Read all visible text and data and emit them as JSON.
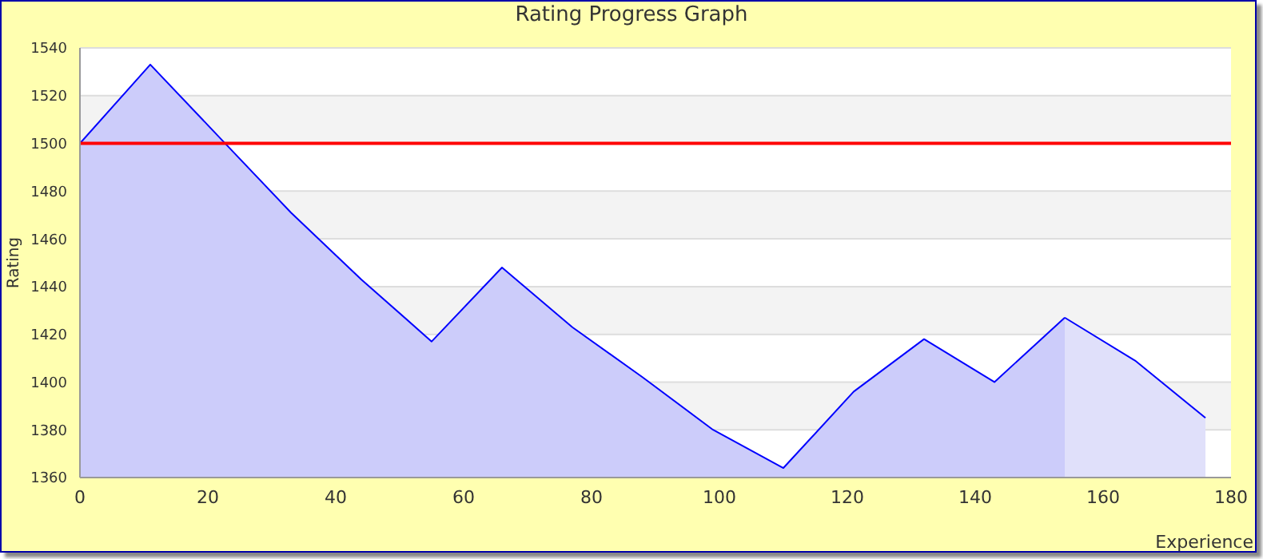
{
  "chart_data": {
    "type": "area",
    "title": "Rating Progress Graph",
    "xlabel": "Experience",
    "ylabel": "Rating",
    "series": [
      {
        "color": "#ccccfa",
        "x": [
          0,
          11,
          22,
          33,
          44,
          55,
          66,
          77,
          88,
          99,
          110,
          121,
          132,
          143,
          154
        ],
        "values": [
          1500,
          1533,
          1502,
          1471,
          1443,
          1417,
          1448,
          1423,
          1402,
          1380,
          1364,
          1396,
          1418,
          1400,
          1427
        ]
      },
      {
        "color": "#e0e0fa",
        "x": [
          154,
          165,
          176
        ],
        "values": [
          1427,
          1409,
          1385
        ]
      }
    ],
    "xlim": [
      0,
      180
    ],
    "xticks": [
      0,
      20,
      40,
      60,
      80,
      100,
      120,
      140,
      160,
      180
    ],
    "ylim": [
      1360,
      1540
    ],
    "yticks": [
      1360,
      1380,
      1400,
      1420,
      1440,
      1460,
      1480,
      1500,
      1520,
      1540
    ],
    "grid": "y",
    "ref_lines": [
      {
        "axis": "y",
        "value": 1500,
        "color": "#ff0000"
      }
    ]
  }
}
